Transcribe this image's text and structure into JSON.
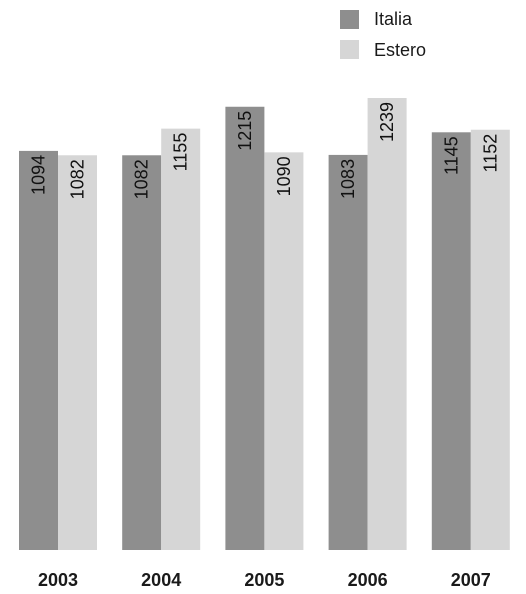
{
  "chart_data": {
    "type": "bar",
    "categories": [
      "2003",
      "2004",
      "2005",
      "2006",
      "2007"
    ],
    "series": [
      {
        "name": "Italia",
        "values": [
          1094,
          1082,
          1215,
          1083,
          1145
        ],
        "color": "#8e8e8e"
      },
      {
        "name": "Estero",
        "values": [
          1082,
          1155,
          1090,
          1239,
          1152
        ],
        "color": "#d6d6d6"
      }
    ],
    "legend_position": "top-right",
    "grid": false,
    "ylim": [
      0,
      1239
    ],
    "value_labels": "rotated-inside-bar-top"
  }
}
